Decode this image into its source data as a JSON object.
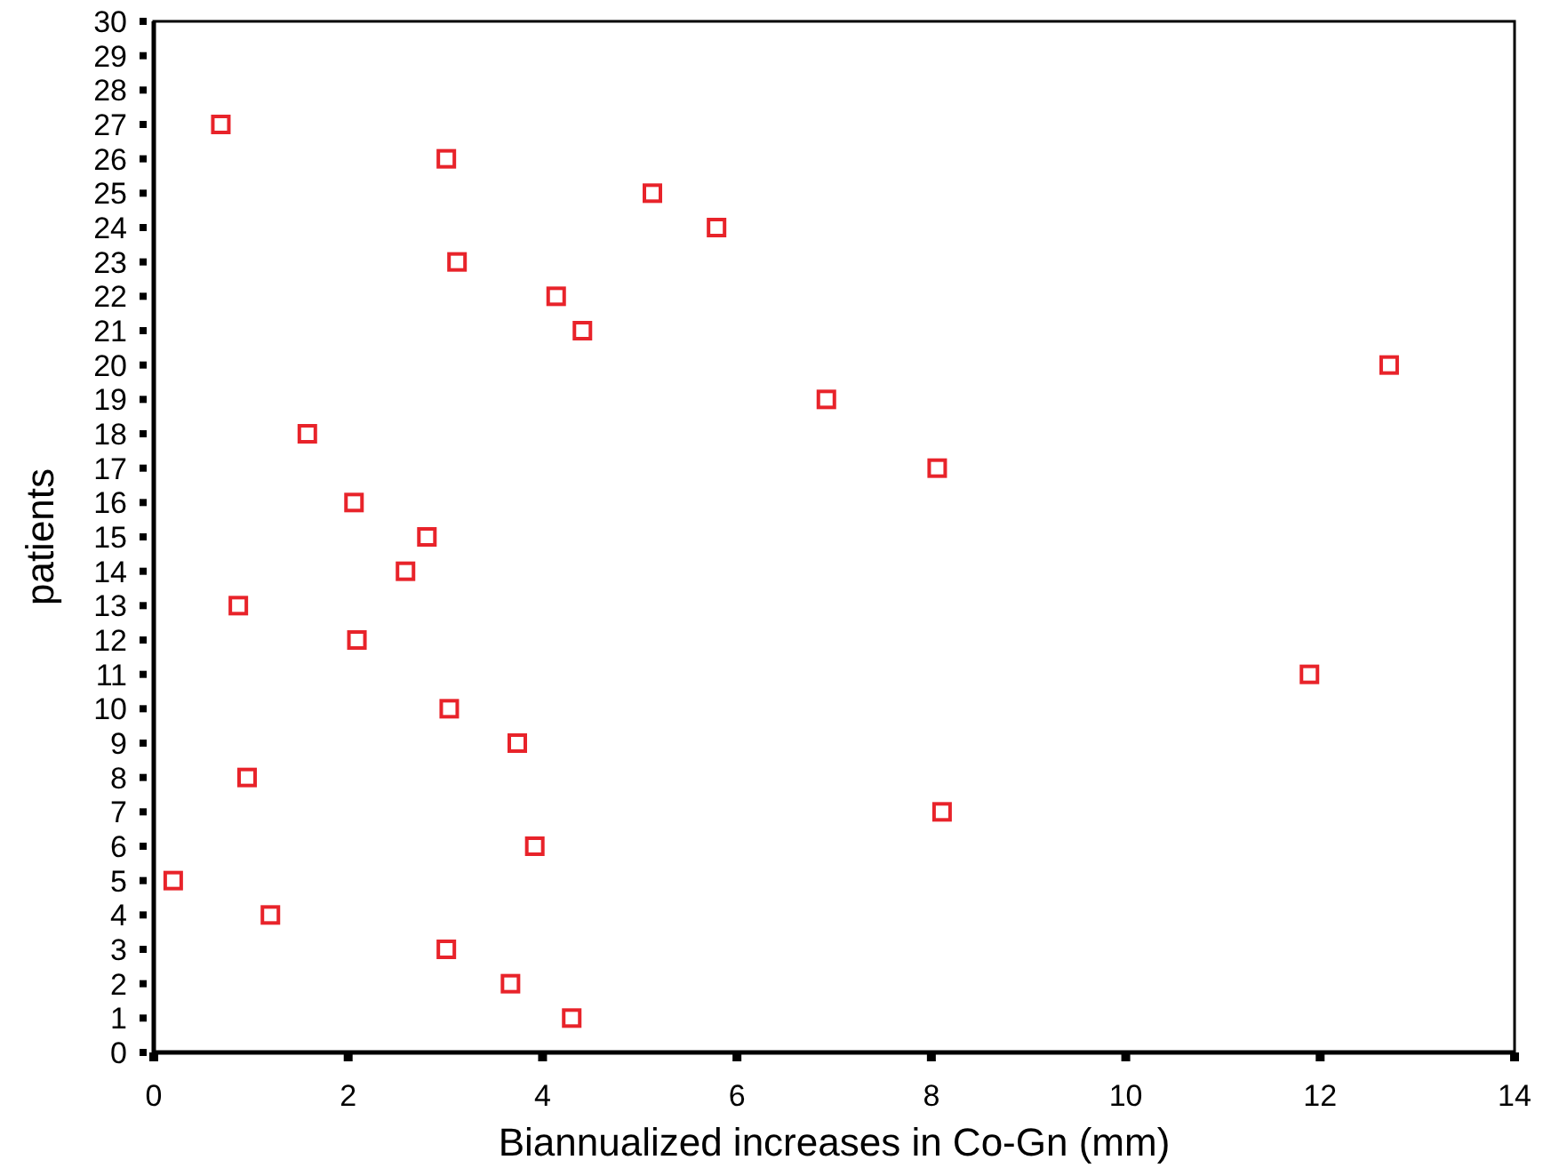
{
  "chart_data": {
    "type": "scatter",
    "xlabel": "Biannualized increases in Co-Gn (mm)",
    "ylabel": "patients",
    "x": [
      4.3,
      3.67,
      3.01,
      1.2,
      0.2,
      3.92,
      8.11,
      0.96,
      3.74,
      3.04,
      11.89,
      2.09,
      0.87,
      2.59,
      2.81,
      2.06,
      8.06,
      1.58,
      6.92,
      12.71,
      4.41,
      4.14,
      3.12,
      5.79,
      5.13,
      3.01,
      0.69
    ],
    "values": [
      1,
      2,
      3,
      4,
      5,
      6,
      7,
      8,
      9,
      10,
      11,
      12,
      13,
      14,
      15,
      16,
      17,
      18,
      19,
      20,
      21,
      22,
      23,
      24,
      25,
      26,
      27
    ],
    "color": "#e8232a",
    "marker": "square",
    "xlim": [
      0,
      14
    ],
    "xticks": [
      0,
      2,
      4,
      6,
      8,
      10,
      12,
      14
    ],
    "ylim": [
      0,
      30
    ],
    "yticks": [
      0,
      1,
      2,
      3,
      4,
      5,
      6,
      7,
      8,
      9,
      10,
      11,
      12,
      13,
      14,
      15,
      16,
      17,
      18,
      19,
      20,
      21,
      22,
      23,
      24,
      25,
      26,
      27,
      28,
      29,
      30
    ],
    "grid": false
  }
}
